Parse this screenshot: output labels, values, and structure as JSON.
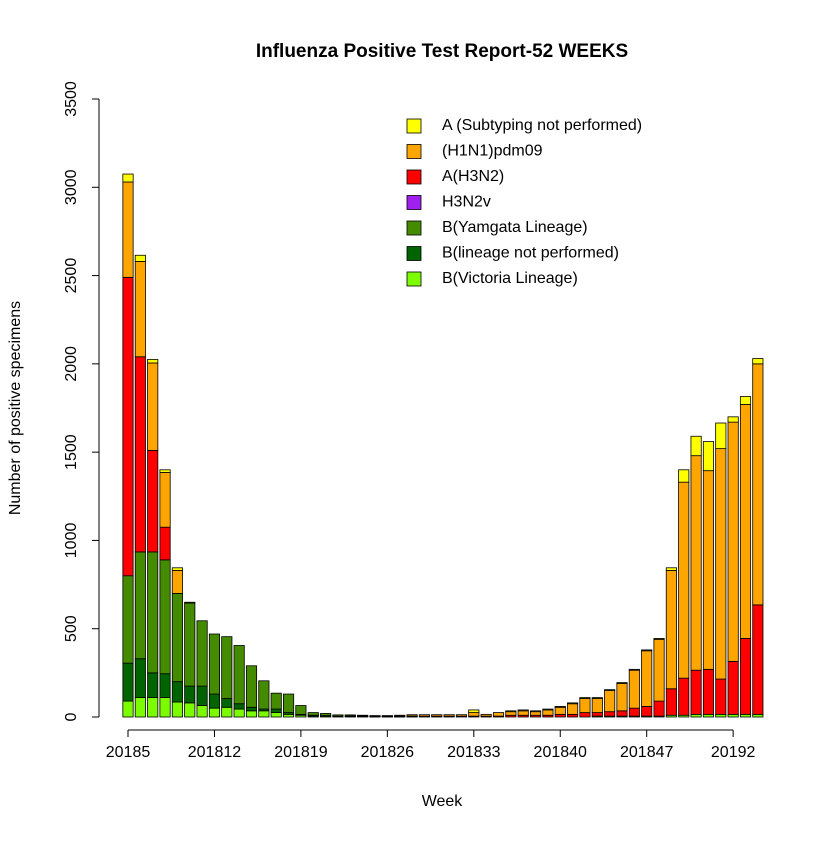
{
  "chart_data": {
    "type": "stacked_bar",
    "title": "Influenza Positive Test Report-52 WEEKS",
    "x_label": "Week",
    "y_label": "Number of positive specimens",
    "categories": [
      "20185",
      null,
      null,
      null,
      null,
      null,
      null,
      "201812",
      null,
      null,
      null,
      null,
      null,
      null,
      "201819",
      null,
      null,
      null,
      null,
      null,
      null,
      "201826",
      null,
      null,
      null,
      null,
      null,
      null,
      "201833",
      null,
      null,
      null,
      null,
      null,
      null,
      "201840",
      null,
      null,
      null,
      null,
      null,
      null,
      "201847",
      null,
      null,
      null,
      null,
      null,
      null,
      "20192",
      null,
      null
    ],
    "ylim": [
      0,
      3500
    ],
    "yticks": [
      0,
      500,
      1000,
      1500,
      2000,
      2500,
      3000,
      3500
    ],
    "legend": "top-right",
    "series": [
      {
        "name": "B(Victoria Lineage)",
        "color": "#7cfc00",
        "values": [
          90,
          110,
          110,
          110,
          85,
          80,
          65,
          50,
          55,
          45,
          35,
          35,
          25,
          15,
          10,
          5,
          5,
          3,
          2,
          2,
          1,
          1,
          1,
          1,
          0,
          0,
          0,
          0,
          0,
          0,
          0,
          0,
          0,
          0,
          0,
          0,
          0,
          0,
          5,
          5,
          5,
          5,
          5,
          5,
          10,
          10,
          15,
          15,
          15,
          15,
          15,
          15
        ]
      },
      {
        "name": "B(lineage not performed)",
        "color": "#006400",
        "values": [
          215,
          220,
          140,
          135,
          115,
          95,
          110,
          80,
          50,
          30,
          20,
          10,
          20,
          10,
          5,
          5,
          3,
          2,
          2,
          1,
          1,
          1,
          1,
          0,
          0,
          0,
          0,
          0,
          0,
          0,
          0,
          0,
          0,
          0,
          0,
          0,
          0,
          0,
          0,
          0,
          0,
          0,
          0,
          0,
          0,
          0,
          0,
          0,
          0,
          0,
          0,
          0
        ]
      },
      {
        "name": "B(Yamgata Lineage)",
        "color": "#458b00",
        "values": [
          495,
          605,
          685,
          645,
          500,
          470,
          370,
          340,
          350,
          330,
          235,
          160,
          90,
          105,
          50,
          15,
          12,
          7,
          6,
          4,
          3,
          2,
          2,
          2,
          0,
          0,
          0,
          0,
          0,
          0,
          0,
          0,
          0,
          0,
          0,
          0,
          0,
          0,
          0,
          0,
          0,
          0,
          0,
          0,
          0,
          0,
          0,
          0,
          0,
          0,
          0,
          0
        ]
      },
      {
        "name": "H3N2v",
        "color": "#a020f0",
        "values": [
          0,
          0,
          0,
          0,
          0,
          0,
          0,
          0,
          0,
          0,
          0,
          0,
          0,
          0,
          0,
          0,
          0,
          0,
          0,
          0,
          0,
          0,
          0,
          0,
          0,
          0,
          0,
          0,
          0,
          0,
          0,
          0,
          0,
          0,
          0,
          0,
          0,
          0,
          0,
          0,
          0,
          0,
          0,
          0,
          0,
          0,
          0,
          0,
          0,
          0,
          0,
          0
        ]
      },
      {
        "name": "A(H3N2)",
        "color": "#ff0000",
        "values": [
          1690,
          1105,
          575,
          185,
          0,
          0,
          0,
          0,
          0,
          0,
          0,
          0,
          0,
          0,
          0,
          0,
          0,
          0,
          0,
          0,
          0,
          1,
          1,
          3,
          5,
          5,
          5,
          5,
          5,
          5,
          5,
          10,
          10,
          10,
          10,
          15,
          15,
          25,
          20,
          25,
          30,
          45,
          55,
          85,
          150,
          210,
          250,
          255,
          200,
          300,
          430,
          620
        ]
      },
      {
        "name": "(H1N1)pdm09",
        "color": "#ffa500",
        "values": [
          540,
          540,
          495,
          310,
          130,
          5,
          0,
          0,
          0,
          0,
          0,
          0,
          0,
          0,
          0,
          0,
          0,
          0,
          2,
          3,
          3,
          3,
          5,
          7,
          8,
          8,
          8,
          8,
          20,
          10,
          20,
          20,
          25,
          20,
          30,
          40,
          60,
          80,
          80,
          120,
          155,
          215,
          315,
          350,
          670,
          1110,
          1215,
          1125,
          1305,
          1355,
          1325,
          1365
        ]
      },
      {
        "name": "A (Subtyping not performed)",
        "color": "#ffff00",
        "values": [
          45,
          35,
          20,
          15,
          15,
          0,
          0,
          0,
          0,
          0,
          0,
          0,
          0,
          0,
          0,
          0,
          0,
          0,
          0,
          0,
          0,
          0,
          0,
          0,
          0,
          0,
          0,
          0,
          15,
          0,
          0,
          5,
          5,
          5,
          5,
          5,
          5,
          5,
          5,
          5,
          5,
          5,
          5,
          5,
          15,
          70,
          110,
          165,
          145,
          30,
          45,
          30
        ]
      }
    ]
  }
}
